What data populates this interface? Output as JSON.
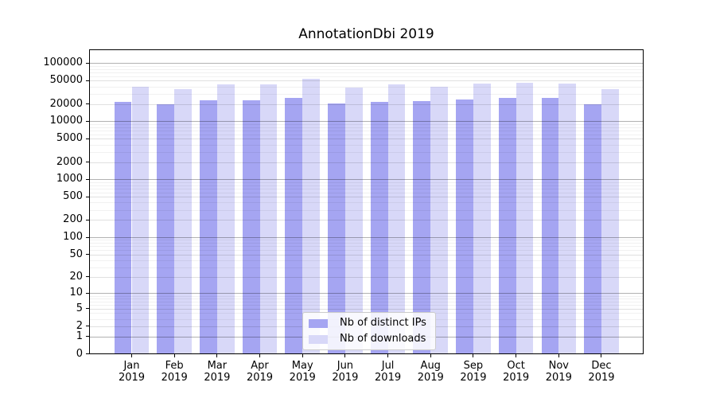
{
  "chart_data": {
    "type": "bar",
    "title": "AnnotationDbi 2019",
    "categories": [
      "Jan",
      "Feb",
      "Mar",
      "Apr",
      "May",
      "Jun",
      "Jul",
      "Aug",
      "Sep",
      "Oct",
      "Nov",
      "Dec"
    ],
    "category_year_line": "2019",
    "series": [
      {
        "name": "Nb of distinct IPs",
        "color": "#a5a5f2",
        "values": [
          21800,
          20000,
          23200,
          22900,
          25200,
          20500,
          21500,
          22200,
          23700,
          25200,
          25200,
          20000
        ]
      },
      {
        "name": "Nb of downloads",
        "color": "#d8d8f8",
        "values": [
          39700,
          35700,
          43100,
          44000,
          53700,
          38800,
          44000,
          40000,
          44500,
          45900,
          45400,
          35700
        ]
      }
    ],
    "y_axis": {
      "scale": "log1p",
      "ticks": [
        100000,
        50000,
        20000,
        10000,
        5000,
        2000,
        1000,
        500,
        200,
        100,
        50,
        20,
        10,
        5,
        2,
        1,
        0
      ],
      "range": [
        0,
        170000
      ],
      "gridlines": "horizontal"
    },
    "x_axis": {
      "label_style": "month over year, two lines"
    },
    "legend": {
      "position": "lower-center"
    },
    "colors": {
      "background": "#ffffff",
      "spine": "#000000",
      "grid_major": "rgba(0,0,0,0.30)",
      "grid_mid": "rgba(0,0,0,0.12)",
      "grid_minor": "rgba(0,0,0,0.055)"
    }
  }
}
